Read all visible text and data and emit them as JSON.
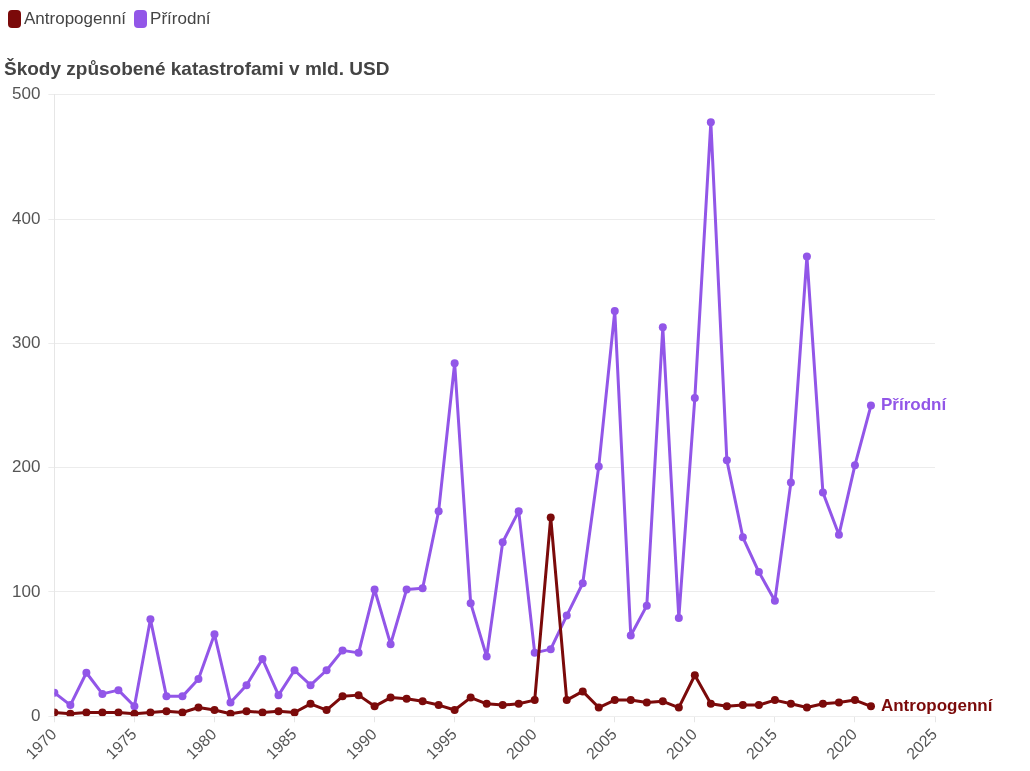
{
  "chart_data": {
    "type": "line",
    "title": "Škody způsobené katastrofami v mld. USD",
    "x": [
      1970,
      1971,
      1972,
      1973,
      1974,
      1975,
      1976,
      1977,
      1978,
      1979,
      1980,
      1981,
      1982,
      1983,
      1984,
      1985,
      1986,
      1987,
      1988,
      1989,
      1990,
      1991,
      1992,
      1993,
      1994,
      1995,
      1996,
      1997,
      1998,
      1999,
      2000,
      2001,
      2002,
      2003,
      2004,
      2005,
      2006,
      2007,
      2008,
      2009,
      2010,
      2011,
      2012,
      2013,
      2014,
      2015,
      2016,
      2017,
      2018,
      2019,
      2020,
      2021
    ],
    "series": [
      {
        "name": "Antropogenní",
        "color": "#7b0a0a",
        "values": [
          3,
          2,
          3,
          3,
          3,
          2,
          3,
          4,
          3,
          7,
          5,
          2,
          4,
          3,
          4,
          3,
          10,
          5,
          16,
          17,
          8,
          15,
          14,
          12,
          9,
          5,
          15,
          10,
          9,
          10,
          13,
          160,
          13,
          20,
          7,
          13,
          13,
          11,
          12,
          7,
          33,
          10,
          8,
          9,
          9,
          13,
          10,
          7,
          10,
          11,
          13,
          8
        ]
      },
      {
        "name": "Přírodní",
        "color": "#9256e8",
        "values": [
          19,
          9,
          35,
          18,
          21,
          8,
          78,
          16,
          16,
          30,
          66,
          11,
          25,
          46,
          17,
          37,
          25,
          37,
          53,
          51,
          102,
          58,
          102,
          103,
          165,
          284,
          91,
          48,
          140,
          165,
          51,
          54,
          81,
          107,
          201,
          326,
          65,
          89,
          313,
          79,
          256,
          478,
          206,
          144,
          116,
          93,
          188,
          370,
          180,
          146,
          202,
          250
        ]
      }
    ],
    "xlim": [
      1970,
      2025
    ],
    "xticks": [
      1970,
      1975,
      1980,
      1985,
      1990,
      1995,
      2000,
      2005,
      2010,
      2015,
      2020,
      2025
    ],
    "ylim": [
      0,
      500
    ],
    "yticks": [
      0,
      100,
      200,
      300,
      400,
      500
    ],
    "grid": "y",
    "legend": "top left",
    "marker": "circle",
    "line_style": "solid"
  }
}
